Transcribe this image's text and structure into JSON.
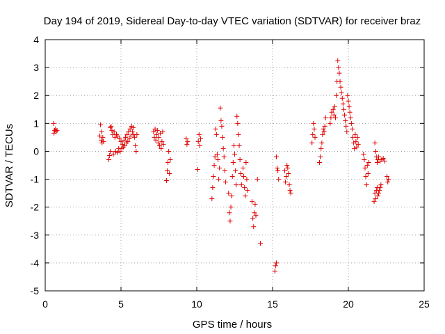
{
  "chart_data": {
    "type": "scatter",
    "title": "Day 194 of 2019, Sidereal Day-to-day VTEC variation (SDTVAR) for receiver braz",
    "xlabel": "GPS time / hours",
    "ylabel": "SDTVAR / TECUs",
    "xlim": [
      0,
      25
    ],
    "ylim": [
      -5,
      4
    ],
    "grid": true,
    "marker": "+",
    "marker_color": "#e00000",
    "x_ticks": [
      {
        "value": 0,
        "label": "0"
      },
      {
        "value": 5,
        "label": "5"
      },
      {
        "value": 10,
        "label": "10"
      },
      {
        "value": 15,
        "label": "15"
      },
      {
        "value": 20,
        "label": "20"
      },
      {
        "value": 25,
        "label": "25"
      }
    ],
    "y_ticks": [
      {
        "value": -5,
        "label": "-5"
      },
      {
        "value": -4,
        "label": "-4"
      },
      {
        "value": -3,
        "label": "-3"
      },
      {
        "value": -2,
        "label": "-2"
      },
      {
        "value": -1,
        "label": "-1"
      },
      {
        "value": 0,
        "label": "0"
      },
      {
        "value": 1,
        "label": "1"
      },
      {
        "value": 2,
        "label": "2"
      },
      {
        "value": 3,
        "label": "3"
      },
      {
        "value": 4,
        "label": "4"
      }
    ],
    "series": [
      {
        "name": "SDTVAR",
        "points": [
          [
            0.55,
            1.0
          ],
          [
            0.58,
            0.65
          ],
          [
            0.62,
            0.75
          ],
          [
            0.68,
            0.8
          ],
          [
            0.72,
            0.7
          ],
          [
            0.78,
            0.75
          ],
          [
            3.6,
            0.55
          ],
          [
            3.65,
            0.95
          ],
          [
            3.7,
            0.4
          ],
          [
            3.72,
            0.7
          ],
          [
            3.75,
            0.3
          ],
          [
            3.8,
            0.5
          ],
          [
            3.85,
            0.35
          ],
          [
            4.2,
            -0.3
          ],
          [
            4.25,
            -0.15
          ],
          [
            4.3,
            0.0
          ],
          [
            4.3,
            0.85
          ],
          [
            4.35,
            0.9
          ],
          [
            4.4,
            0.75
          ],
          [
            4.45,
            0.6
          ],
          [
            4.5,
            -0.1
          ],
          [
            4.55,
            0.7
          ],
          [
            4.6,
            0.5
          ],
          [
            4.65,
            0.0
          ],
          [
            4.7,
            0.6
          ],
          [
            4.75,
            -0.05
          ],
          [
            4.8,
            0.55
          ],
          [
            4.85,
            0.1
          ],
          [
            4.9,
            0.45
          ],
          [
            4.95,
            0.0
          ],
          [
            5.0,
            0.35
          ],
          [
            5.05,
            0.1
          ],
          [
            5.1,
            0.25
          ],
          [
            5.15,
            0.15
          ],
          [
            5.2,
            0.4
          ],
          [
            5.25,
            0.2
          ],
          [
            5.3,
            0.5
          ],
          [
            5.35,
            0.3
          ],
          [
            5.4,
            0.6
          ],
          [
            5.45,
            0.35
          ],
          [
            5.5,
            0.7
          ],
          [
            5.55,
            0.45
          ],
          [
            5.6,
            0.8
          ],
          [
            5.65,
            0.55
          ],
          [
            5.7,
            0.9
          ],
          [
            5.75,
            0.7
          ],
          [
            5.8,
            0.85
          ],
          [
            5.85,
            0.6
          ],
          [
            5.9,
            0.5
          ],
          [
            5.95,
            0.2
          ],
          [
            6.0,
            0.0
          ],
          [
            6.05,
            0.6
          ],
          [
            7.15,
            0.7
          ],
          [
            7.2,
            0.5
          ],
          [
            7.25,
            0.8
          ],
          [
            7.3,
            0.4
          ],
          [
            7.35,
            0.6
          ],
          [
            7.4,
            0.75
          ],
          [
            7.45,
            0.3
          ],
          [
            7.5,
            0.5
          ],
          [
            7.55,
            0.2
          ],
          [
            7.6,
            0.65
          ],
          [
            7.65,
            0.1
          ],
          [
            7.7,
            0.35
          ],
          [
            7.75,
            0.7
          ],
          [
            7.8,
            0.25
          ],
          [
            8.0,
            -1.05
          ],
          [
            8.05,
            -0.7
          ],
          [
            8.1,
            -0.4
          ],
          [
            8.15,
            0.0
          ],
          [
            8.2,
            -0.8
          ],
          [
            8.25,
            -0.3
          ],
          [
            9.3,
            0.45
          ],
          [
            9.35,
            0.25
          ],
          [
            9.4,
            0.35
          ],
          [
            10.05,
            -0.65
          ],
          [
            10.1,
            0.35
          ],
          [
            10.15,
            0.6
          ],
          [
            10.2,
            0.2
          ],
          [
            10.25,
            0.45
          ],
          [
            11.0,
            -1.7
          ],
          [
            11.05,
            -1.3
          ],
          [
            11.1,
            -0.9
          ],
          [
            11.15,
            -0.5
          ],
          [
            11.2,
            -0.2
          ],
          [
            11.25,
            0.8
          ],
          [
            11.3,
            0.6
          ],
          [
            11.35,
            -0.1
          ],
          [
            11.4,
            -0.3
          ],
          [
            11.45,
            -1.0
          ],
          [
            11.5,
            -0.6
          ],
          [
            11.55,
            1.55
          ],
          [
            11.6,
            1.1
          ],
          [
            11.65,
            0.9
          ],
          [
            11.7,
            0.5
          ],
          [
            11.75,
            0.1
          ],
          [
            11.8,
            -0.2
          ],
          [
            11.85,
            -0.7
          ],
          [
            11.9,
            -1.1
          ],
          [
            12.1,
            -1.5
          ],
          [
            12.15,
            -2.2
          ],
          [
            12.2,
            -2.5
          ],
          [
            12.25,
            -2.0
          ],
          [
            12.3,
            -1.6
          ],
          [
            12.35,
            -0.9
          ],
          [
            12.4,
            -0.4
          ],
          [
            12.45,
            0.2
          ],
          [
            12.5,
            -0.1
          ],
          [
            12.55,
            -0.7
          ],
          [
            12.6,
            -1.2
          ],
          [
            12.65,
            1.25
          ],
          [
            12.7,
            1.0
          ],
          [
            12.75,
            0.6
          ],
          [
            12.8,
            0.2
          ],
          [
            12.85,
            -0.3
          ],
          [
            12.9,
            -0.8
          ],
          [
            12.95,
            -1.2
          ],
          [
            13.05,
            -0.6
          ],
          [
            13.1,
            -0.9
          ],
          [
            13.15,
            -1.3
          ],
          [
            13.2,
            -1.6
          ],
          [
            13.25,
            -0.4
          ],
          [
            13.3,
            -1.0
          ],
          [
            13.35,
            -1.4
          ],
          [
            13.65,
            -1.8
          ],
          [
            13.7,
            -2.4
          ],
          [
            13.75,
            -2.7
          ],
          [
            13.8,
            -2.2
          ],
          [
            13.85,
            -1.9
          ],
          [
            13.9,
            -2.3
          ],
          [
            14.0,
            -1.0
          ],
          [
            14.2,
            -3.3
          ],
          [
            15.15,
            -4.3
          ],
          [
            15.2,
            -4.1
          ],
          [
            15.25,
            -4.0
          ],
          [
            15.25,
            -0.2
          ],
          [
            15.3,
            -0.6
          ],
          [
            15.35,
            -0.7
          ],
          [
            15.4,
            -1.0
          ],
          [
            15.8,
            -0.7
          ],
          [
            15.85,
            -1.1
          ],
          [
            15.9,
            -0.9
          ],
          [
            15.95,
            -0.5
          ],
          [
            16.0,
            -0.6
          ],
          [
            16.05,
            -0.8
          ],
          [
            16.1,
            -1.2
          ],
          [
            16.15,
            -1.4
          ],
          [
            16.2,
            -1.5
          ],
          [
            17.6,
            0.3
          ],
          [
            17.65,
            0.6
          ],
          [
            17.7,
            1.0
          ],
          [
            17.75,
            0.8
          ],
          [
            17.8,
            0.5
          ],
          [
            18.1,
            -0.4
          ],
          [
            18.15,
            -0.2
          ],
          [
            18.2,
            0.1
          ],
          [
            18.25,
            0.3
          ],
          [
            18.3,
            0.6
          ],
          [
            18.35,
            0.8
          ],
          [
            18.4,
            0.7
          ],
          [
            18.45,
            0.9
          ],
          [
            18.5,
            1.2
          ],
          [
            18.8,
            1.0
          ],
          [
            18.85,
            1.2
          ],
          [
            18.9,
            1.4
          ],
          [
            19.0,
            1.5
          ],
          [
            19.05,
            1.3
          ],
          [
            19.1,
            1.6
          ],
          [
            19.15,
            1.2
          ],
          [
            19.2,
            2.0
          ],
          [
            19.25,
            2.5
          ],
          [
            19.3,
            3.25
          ],
          [
            19.35,
            3.0
          ],
          [
            19.4,
            2.8
          ],
          [
            19.45,
            2.5
          ],
          [
            19.5,
            2.3
          ],
          [
            19.55,
            2.1
          ],
          [
            19.6,
            1.9
          ],
          [
            19.65,
            1.7
          ],
          [
            19.7,
            1.5
          ],
          [
            19.75,
            1.3
          ],
          [
            19.8,
            1.1
          ],
          [
            19.85,
            0.9
          ],
          [
            19.9,
            0.7
          ],
          [
            19.95,
            2.0
          ],
          [
            20.0,
            1.8
          ],
          [
            20.05,
            1.6
          ],
          [
            20.1,
            1.4
          ],
          [
            20.15,
            1.2
          ],
          [
            20.2,
            1.0
          ],
          [
            20.25,
            0.8
          ],
          [
            20.3,
            0.5
          ],
          [
            20.35,
            0.3
          ],
          [
            20.4,
            0.1
          ],
          [
            20.45,
            0.6
          ],
          [
            20.5,
            0.35
          ],
          [
            20.55,
            0.15
          ],
          [
            20.6,
            0.5
          ],
          [
            20.65,
            0.25
          ],
          [
            21.0,
            -0.1
          ],
          [
            21.05,
            -0.3
          ],
          [
            21.1,
            -0.6
          ],
          [
            21.15,
            -0.9
          ],
          [
            21.2,
            -1.2
          ],
          [
            21.25,
            -0.5
          ],
          [
            21.3,
            -0.8
          ],
          [
            21.35,
            -0.4
          ],
          [
            21.7,
            -1.8
          ],
          [
            21.75,
            -1.5
          ],
          [
            21.8,
            -1.7
          ],
          [
            21.85,
            -1.4
          ],
          [
            21.9,
            -1.3
          ],
          [
            21.95,
            -1.6
          ],
          [
            22.0,
            -1.5
          ],
          [
            22.05,
            -1.4
          ],
          [
            22.1,
            -1.3
          ],
          [
            22.15,
            -1.2
          ],
          [
            21.75,
            0.3
          ],
          [
            21.8,
            0.0
          ],
          [
            21.85,
            -0.2
          ],
          [
            21.9,
            -0.4
          ],
          [
            21.95,
            -0.3
          ],
          [
            22.0,
            -0.2
          ],
          [
            22.1,
            -0.35
          ],
          [
            22.2,
            -0.3
          ],
          [
            22.3,
            -0.25
          ],
          [
            22.4,
            -0.35
          ],
          [
            22.55,
            -0.9
          ],
          [
            22.6,
            -1.1
          ],
          [
            22.65,
            -1.0
          ]
        ]
      }
    ]
  }
}
